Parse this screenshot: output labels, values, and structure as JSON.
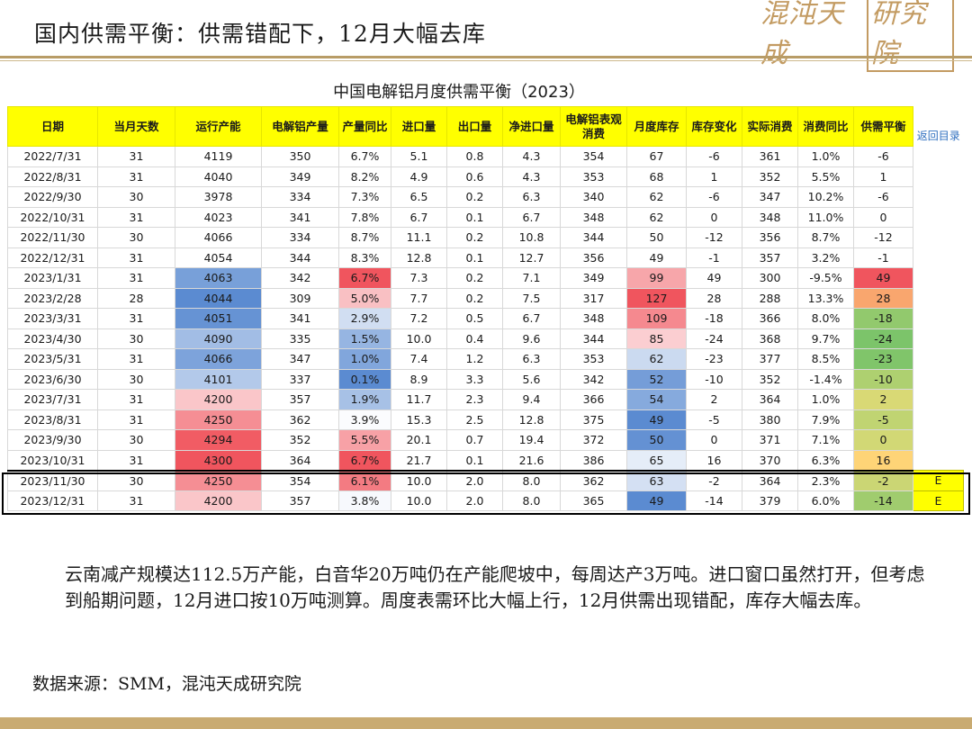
{
  "slide": {
    "title": "国内供需平衡：供需错配下，12月大幅去库",
    "logo_main": "混沌天成",
    "logo_boxed": "研究院"
  },
  "table": {
    "title": "中国电解铝月度供需平衡（2023）",
    "headers": [
      "日期",
      "当月天数",
      "运行产能",
      "电解铝产量",
      "产量同比",
      "进口量",
      "出口量",
      "净进口量",
      "电解铝表观消费",
      "月度库存",
      "库存变化",
      "实际消费",
      "消费同比",
      "供需平衡"
    ],
    "back_link": "返回目录",
    "rows": [
      [
        "2022/7/31",
        "31",
        "4119",
        "350",
        "6.7%",
        "5.1",
        "0.8",
        "4.3",
        "354",
        "67",
        "-6",
        "361",
        "1.0%",
        "-6",
        ""
      ],
      [
        "2022/8/31",
        "31",
        "4040",
        "349",
        "8.2%",
        "4.9",
        "0.6",
        "4.3",
        "353",
        "68",
        "1",
        "352",
        "5.5%",
        "1",
        ""
      ],
      [
        "2022/9/30",
        "30",
        "3978",
        "334",
        "7.3%",
        "6.5",
        "0.2",
        "6.3",
        "340",
        "62",
        "-6",
        "347",
        "10.2%",
        "-6",
        ""
      ],
      [
        "2022/10/31",
        "31",
        "4023",
        "341",
        "7.8%",
        "6.7",
        "0.1",
        "6.7",
        "348",
        "62",
        "0",
        "348",
        "11.0%",
        "0",
        ""
      ],
      [
        "2022/11/30",
        "30",
        "4066",
        "334",
        "8.7%",
        "11.1",
        "0.2",
        "10.8",
        "344",
        "50",
        "-12",
        "356",
        "8.7%",
        "-12",
        ""
      ],
      [
        "2022/12/31",
        "31",
        "4054",
        "344",
        "8.3%",
        "12.8",
        "0.1",
        "12.7",
        "356",
        "49",
        "-1",
        "357",
        "3.2%",
        "-1",
        ""
      ],
      [
        "2023/1/31",
        "31",
        "4063",
        "342",
        "6.7%",
        "7.3",
        "0.2",
        "7.1",
        "349",
        "99",
        "49",
        "300",
        "-9.5%",
        "49",
        ""
      ],
      [
        "2023/2/28",
        "28",
        "4044",
        "309",
        "5.0%",
        "7.7",
        "0.2",
        "7.5",
        "317",
        "127",
        "28",
        "288",
        "13.3%",
        "28",
        ""
      ],
      [
        "2023/3/31",
        "31",
        "4051",
        "341",
        "2.9%",
        "7.2",
        "0.5",
        "6.7",
        "348",
        "109",
        "-18",
        "366",
        "8.0%",
        "-18",
        ""
      ],
      [
        "2023/4/30",
        "30",
        "4090",
        "335",
        "1.5%",
        "10.0",
        "0.4",
        "9.6",
        "344",
        "85",
        "-24",
        "368",
        "9.7%",
        "-24",
        ""
      ],
      [
        "2023/5/31",
        "31",
        "4066",
        "347",
        "1.0%",
        "7.4",
        "1.2",
        "6.3",
        "353",
        "62",
        "-23",
        "377",
        "8.5%",
        "-23",
        ""
      ],
      [
        "2023/6/30",
        "30",
        "4101",
        "337",
        "0.1%",
        "8.9",
        "3.3",
        "5.6",
        "342",
        "52",
        "-10",
        "352",
        "-1.4%",
        "-10",
        ""
      ],
      [
        "2023/7/31",
        "31",
        "4200",
        "357",
        "1.9%",
        "11.7",
        "2.3",
        "9.4",
        "366",
        "54",
        "2",
        "364",
        "1.0%",
        "2",
        ""
      ],
      [
        "2023/8/31",
        "31",
        "4250",
        "362",
        "3.9%",
        "15.3",
        "2.5",
        "12.8",
        "375",
        "49",
        "-5",
        "380",
        "7.9%",
        "-5",
        ""
      ],
      [
        "2023/9/30",
        "30",
        "4294",
        "352",
        "5.5%",
        "20.1",
        "0.7",
        "19.4",
        "372",
        "50",
        "0",
        "371",
        "7.1%",
        "0",
        ""
      ],
      [
        "2023/10/31",
        "31",
        "4300",
        "364",
        "6.7%",
        "21.7",
        "0.1",
        "21.6",
        "386",
        "65",
        "16",
        "370",
        "6.3%",
        "16",
        ""
      ],
      [
        "2023/11/30",
        "30",
        "4250",
        "354",
        "6.1%",
        "10.0",
        "2.0",
        "8.0",
        "362",
        "63",
        "-2",
        "364",
        "2.3%",
        "-2",
        "E"
      ],
      [
        "2023/12/31",
        "31",
        "4200",
        "357",
        "3.8%",
        "10.0",
        "2.0",
        "8.0",
        "365",
        "49",
        "-14",
        "379",
        "6.0%",
        "-14",
        "E"
      ]
    ],
    "colors": {
      "header_bg": "#ffff00",
      "red": "#f0555e",
      "blue": "#5b8bd1",
      "green": "#7cc46a",
      "yellow": "#ffe27a"
    }
  },
  "note": "云南减产规模达112.5万产能，白音华20万吨仍在产能爬坡中，每周达产3万吨。进口窗口虽然打开，但考虑到船期问题，12月进口按10万吨测算。周度表需环比大幅上行，12月供需出现错配，库存大幅去库。",
  "source": "数据来源：SMM，混沌天成研究院"
}
